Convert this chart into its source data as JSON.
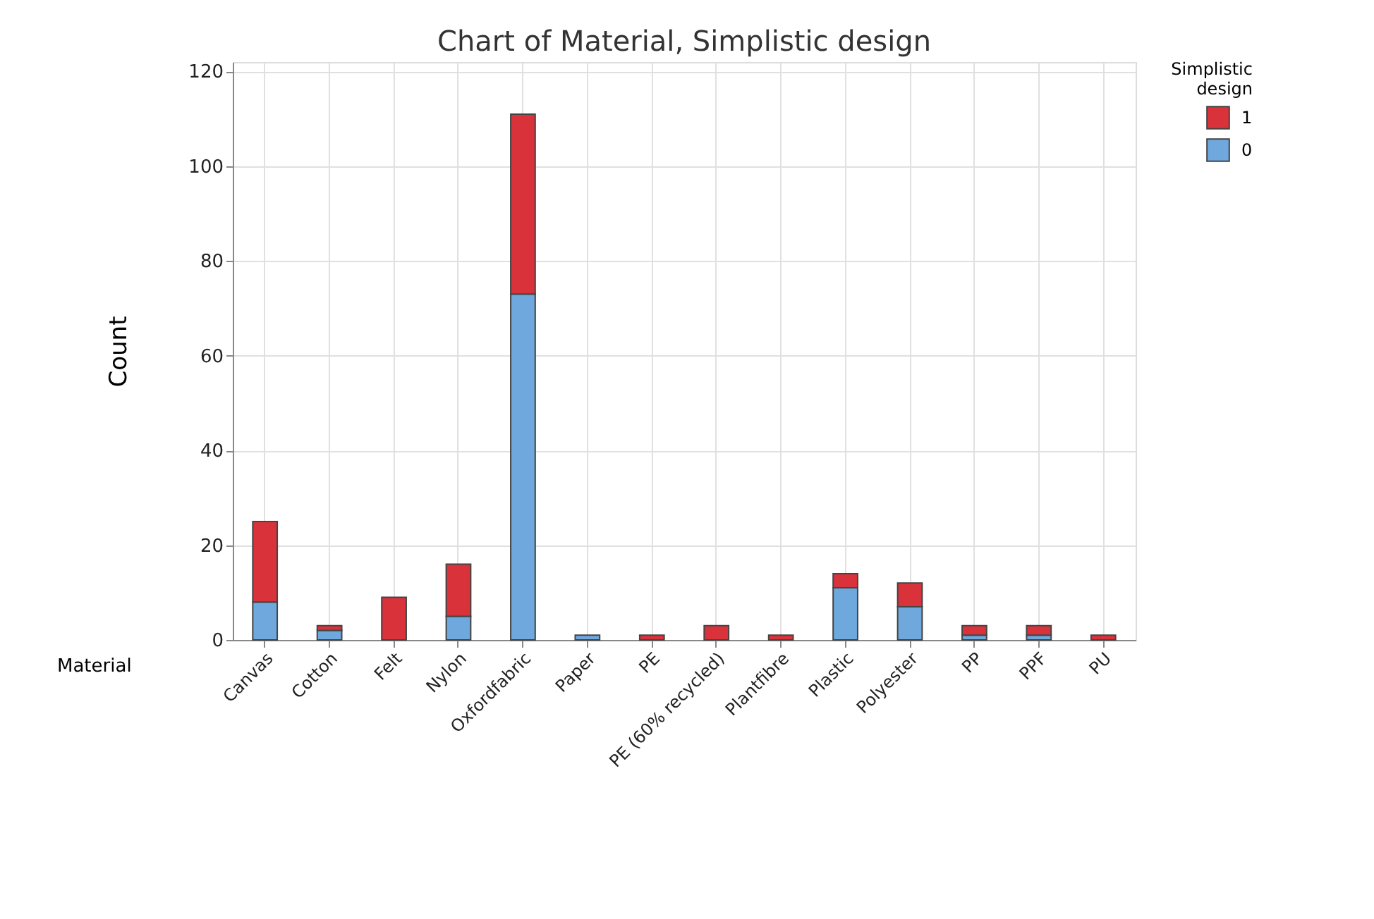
{
  "chart_data": {
    "type": "bar",
    "title": "Chart of Material, Simplistic design",
    "xlabel": "Material",
    "ylabel": "Count",
    "legend_title": "Simplistic design",
    "categories": [
      "Canvas",
      "Cotton",
      "Felt",
      "Nylon",
      "Oxfordfabric",
      "Paper",
      "PE",
      "PE (60% recycled)",
      "Plantfibre",
      "Plastic",
      "Polyester",
      "PP",
      "PPF",
      "PU"
    ],
    "stacked": true,
    "series": [
      {
        "name": "0",
        "color": "#6fa8dc",
        "values": [
          8,
          2,
          0,
          5,
          73,
          1,
          0,
          0,
          0,
          11,
          7,
          1,
          1,
          0
        ]
      },
      {
        "name": "1",
        "color": "#d9323a",
        "values": [
          17,
          1,
          9,
          11,
          38,
          0,
          1,
          3,
          1,
          3,
          5,
          2,
          2,
          1
        ]
      }
    ],
    "ylim": [
      0,
      122
    ],
    "yticks": [
      0,
      20,
      40,
      60,
      80,
      100,
      120
    ],
    "grid": true,
    "legend": "top right"
  }
}
